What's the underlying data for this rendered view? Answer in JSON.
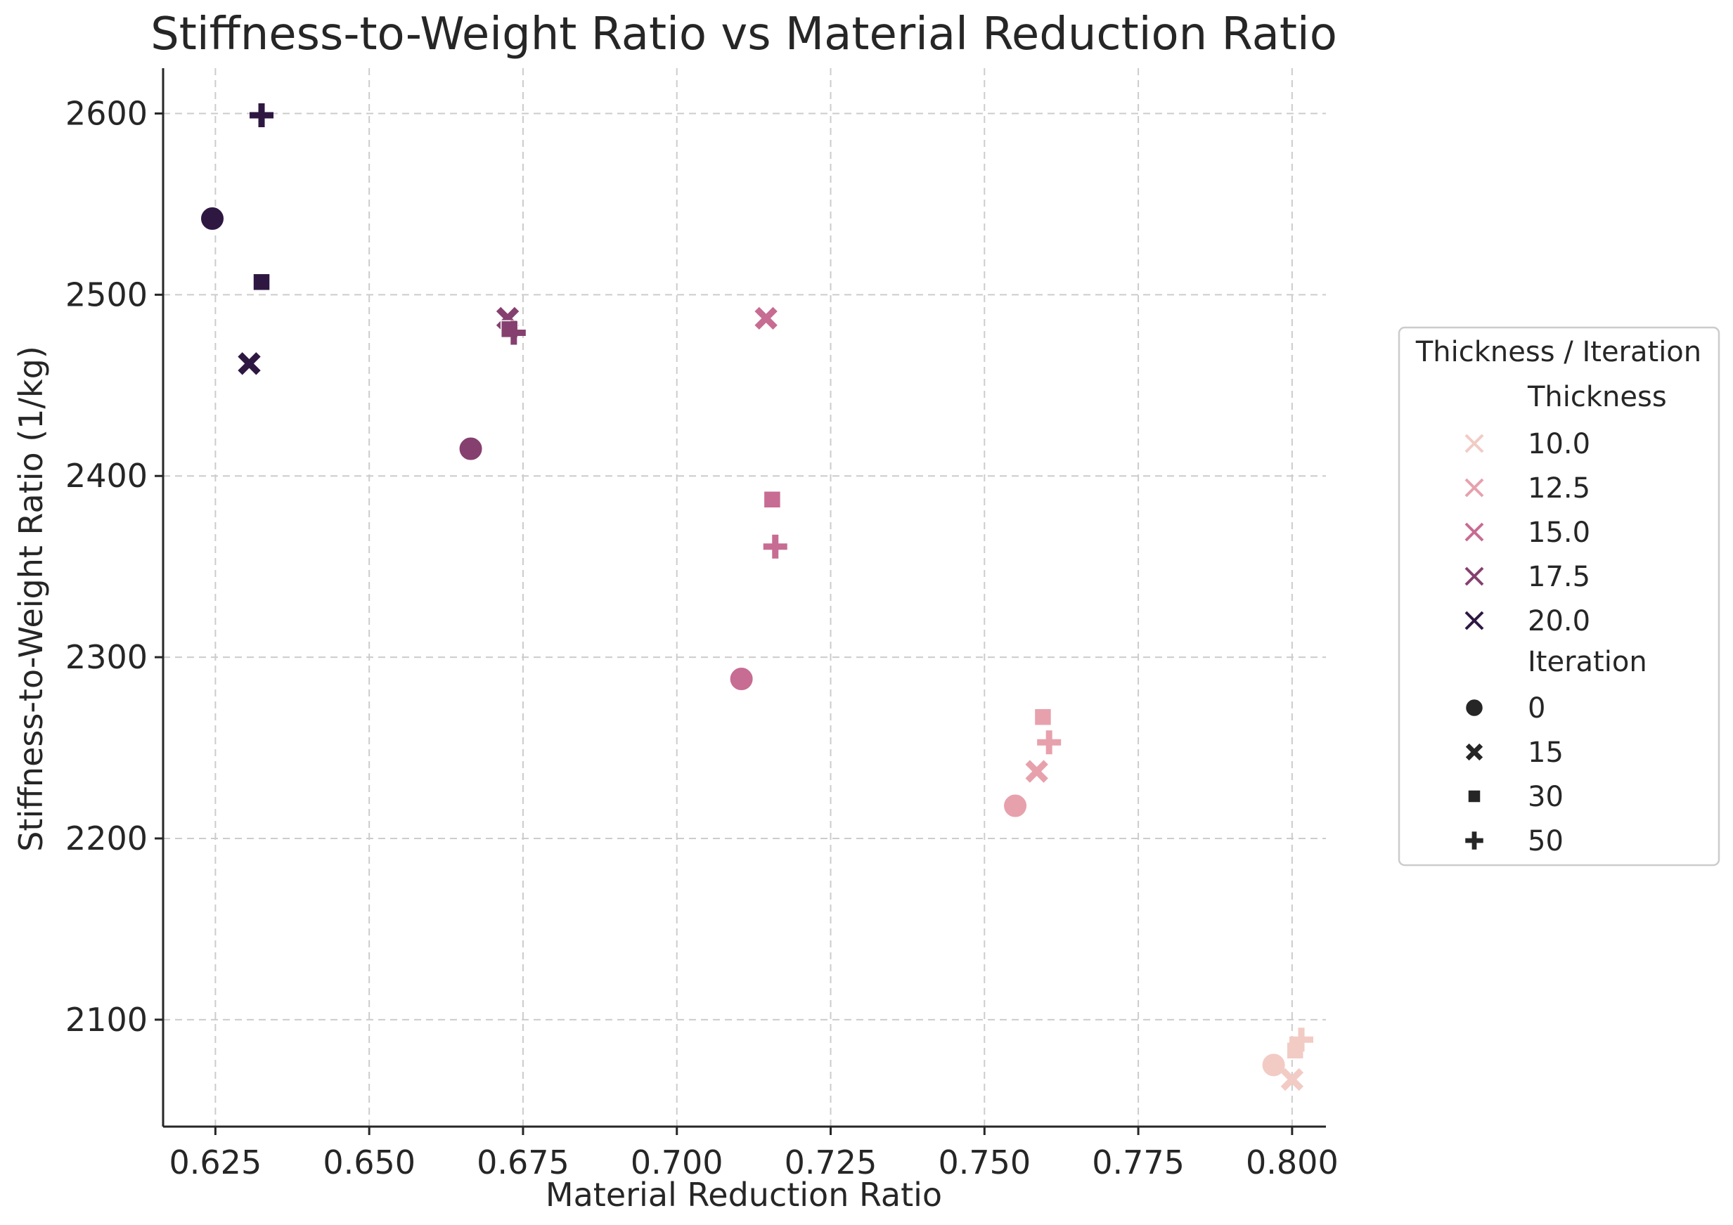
{
  "chart_data": {
    "type": "scatter",
    "title": "Stiffness-to-Weight Ratio vs Material Reduction Ratio",
    "xlabel": "Material Reduction Ratio",
    "ylabel": "Stiffness-to-Weight Ratio (1/kg)",
    "xlim": [
      0.6165,
      0.8055
    ],
    "ylim": [
      2041,
      2625
    ],
    "xticks": [
      0.625,
      0.65,
      0.675,
      0.7,
      0.725,
      0.75,
      0.775,
      0.8
    ],
    "xtick_labels": [
      "0.625",
      "0.650",
      "0.675",
      "0.700",
      "0.725",
      "0.750",
      "0.775",
      "0.800"
    ],
    "yticks": [
      2100,
      2200,
      2300,
      2400,
      2500,
      2600
    ],
    "ytick_labels": [
      "2100",
      "2200",
      "2300",
      "2400",
      "2500",
      "2600"
    ],
    "grid": true,
    "legend": {
      "title": "Thickness / Iteration",
      "placement": "outside-right",
      "hue_title": "Thickness",
      "hue_entries": [
        {
          "label": "10.0",
          "color": "#f2cbc5"
        },
        {
          "label": "12.5",
          "color": "#e7a1ac"
        },
        {
          "label": "15.0",
          "color": "#c76c93"
        },
        {
          "label": "17.5",
          "color": "#85406f"
        },
        {
          "label": "20.0",
          "color": "#2e1842"
        }
      ],
      "style_title": "Iteration",
      "style_entries": [
        {
          "label": "0",
          "marker": "circle"
        },
        {
          "label": "15",
          "marker": "x"
        },
        {
          "label": "30",
          "marker": "square"
        },
        {
          "label": "50",
          "marker": "plus"
        }
      ]
    },
    "series": [
      {
        "thickness": "20.0",
        "color": "#2e1842",
        "points": [
          {
            "iteration": 0,
            "marker": "circle",
            "x": 0.6245,
            "y": 2542
          },
          {
            "iteration": 15,
            "marker": "x",
            "x": 0.6305,
            "y": 2462
          },
          {
            "iteration": 30,
            "marker": "square",
            "x": 0.6325,
            "y": 2507
          },
          {
            "iteration": 50,
            "marker": "plus",
            "x": 0.6325,
            "y": 2599
          }
        ]
      },
      {
        "thickness": "17.5",
        "color": "#85406f",
        "points": [
          {
            "iteration": 0,
            "marker": "circle",
            "x": 0.6665,
            "y": 2415
          },
          {
            "iteration": 15,
            "marker": "x",
            "x": 0.6725,
            "y": 2487
          },
          {
            "iteration": 30,
            "marker": "square",
            "x": 0.6728,
            "y": 2481
          },
          {
            "iteration": 50,
            "marker": "plus",
            "x": 0.6735,
            "y": 2479
          }
        ]
      },
      {
        "thickness": "15.0",
        "color": "#c76c93",
        "points": [
          {
            "iteration": 0,
            "marker": "circle",
            "x": 0.7105,
            "y": 2288
          },
          {
            "iteration": 15,
            "marker": "x",
            "x": 0.7145,
            "y": 2487
          },
          {
            "iteration": 30,
            "marker": "square",
            "x": 0.7155,
            "y": 2387
          },
          {
            "iteration": 50,
            "marker": "plus",
            "x": 0.716,
            "y": 2361
          }
        ]
      },
      {
        "thickness": "12.5",
        "color": "#e7a1ac",
        "points": [
          {
            "iteration": 0,
            "marker": "circle",
            "x": 0.755,
            "y": 2218
          },
          {
            "iteration": 15,
            "marker": "x",
            "x": 0.7585,
            "y": 2237
          },
          {
            "iteration": 30,
            "marker": "square",
            "x": 0.7595,
            "y": 2267
          },
          {
            "iteration": 50,
            "marker": "plus",
            "x": 0.7605,
            "y": 2253
          }
        ]
      },
      {
        "thickness": "10.0",
        "color": "#f2cbc5",
        "points": [
          {
            "iteration": 0,
            "marker": "circle",
            "x": 0.797,
            "y": 2075
          },
          {
            "iteration": 15,
            "marker": "x",
            "x": 0.8,
            "y": 2067
          },
          {
            "iteration": 30,
            "marker": "square",
            "x": 0.8005,
            "y": 2083
          },
          {
            "iteration": 50,
            "marker": "plus",
            "x": 0.8015,
            "y": 2089
          }
        ]
      }
    ]
  }
}
